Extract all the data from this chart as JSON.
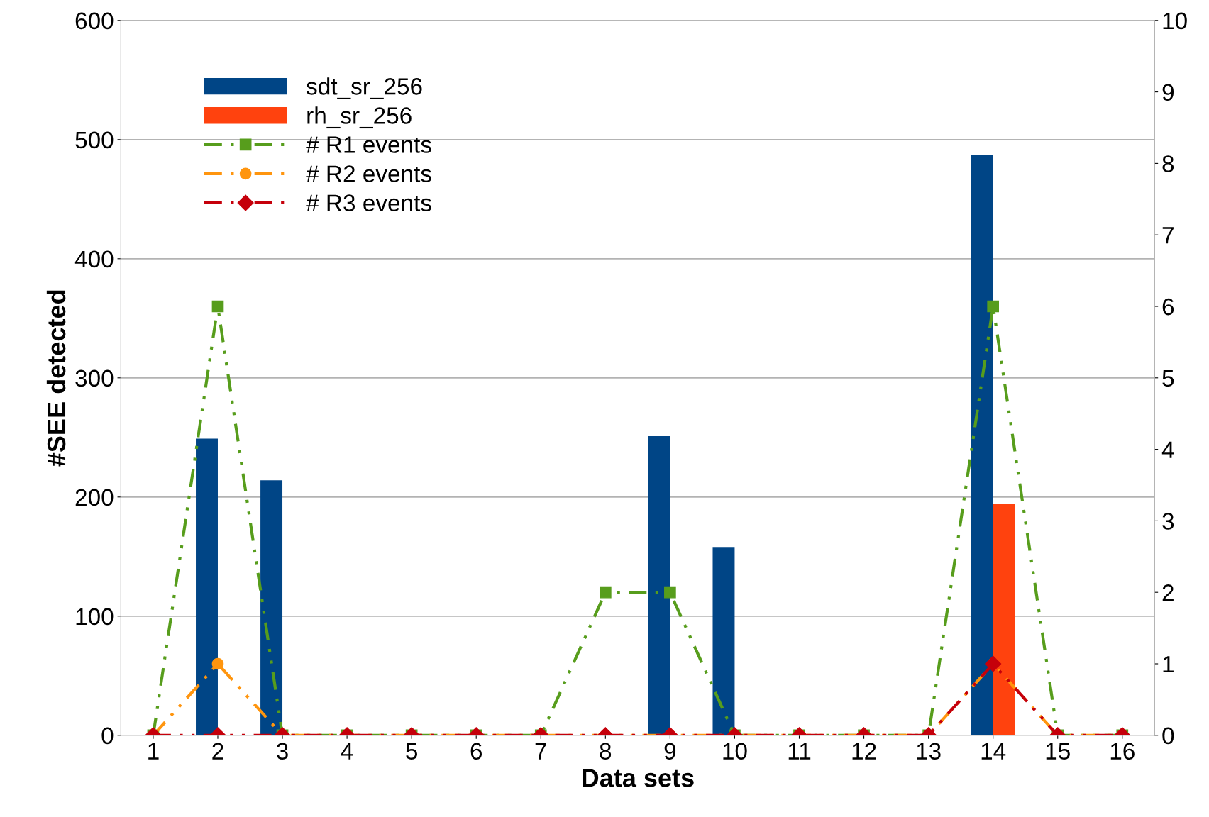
{
  "chart_data": {
    "type": "bar",
    "xlabel": "Data sets",
    "ylabel": "#SEE detected",
    "categories": [
      "1",
      "2",
      "3",
      "4",
      "5",
      "6",
      "7",
      "8",
      "9",
      "10",
      "11",
      "12",
      "13",
      "14",
      "15",
      "16"
    ],
    "ylim": [
      0,
      600
    ],
    "yticks": [
      0,
      100,
      200,
      300,
      400,
      500,
      600
    ],
    "y2lim": [
      0,
      10
    ],
    "y2ticks": [
      0,
      1,
      2,
      3,
      4,
      5,
      6,
      7,
      8,
      9,
      10
    ],
    "grid": "y",
    "legend": "top left",
    "series": [
      {
        "name": "sdt_sr_256",
        "color": "#004586",
        "values": [
          0,
          249,
          214,
          0,
          0,
          0,
          0,
          0,
          251,
          158,
          0,
          0,
          0,
          487,
          0,
          0
        ]
      },
      {
        "name": "rh_sr_256",
        "color": "#ff420e",
        "values": [
          0,
          0,
          0,
          0,
          0,
          0,
          0,
          0,
          0,
          0,
          0,
          0,
          0,
          194,
          0,
          0
        ]
      },
      {
        "name": "# R1 events",
        "type": "line",
        "axis": "y2",
        "color": "#579d1c",
        "marker": "square",
        "line_style": "dashed",
        "values": [
          0,
          6,
          0,
          0,
          0,
          0,
          0,
          2,
          2,
          0,
          0,
          0,
          0,
          6,
          0,
          0
        ]
      },
      {
        "name": "# R2 events",
        "type": "line",
        "axis": "y2",
        "color": "#ff950e",
        "marker": "circle",
        "line_style": "dashed",
        "values": [
          0,
          1,
          0,
          0,
          0,
          0,
          0,
          0,
          0,
          0,
          0,
          0,
          0,
          1,
          0,
          0
        ]
      },
      {
        "name": "# R3 events",
        "type": "line",
        "axis": "y2",
        "color": "#c5000b",
        "marker": "diamond",
        "line_style": "dashed",
        "values": [
          0,
          0,
          0,
          0,
          0,
          0,
          0,
          0,
          0,
          0,
          0,
          0,
          0,
          1,
          0,
          0
        ]
      }
    ]
  }
}
